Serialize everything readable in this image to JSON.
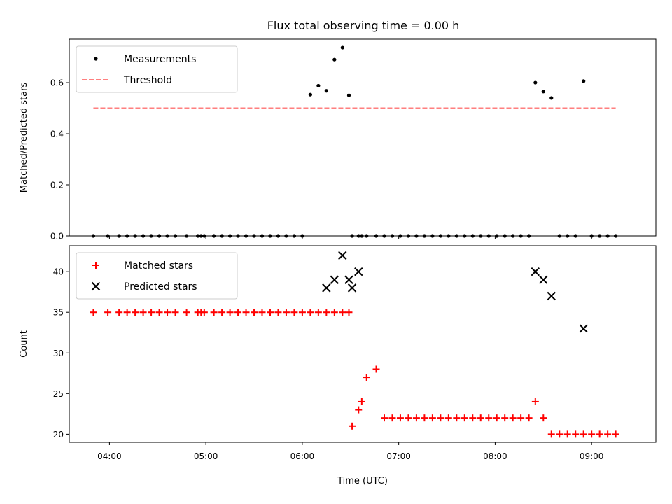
{
  "chart_data": [
    {
      "panel": "top",
      "type": "scatter",
      "title": "Flux total observing time = 0.00 h",
      "xlabel": "",
      "ylabel": "Matched/Predicted stars",
      "ylim": [
        0,
        0.77
      ],
      "yticks": [
        0.0,
        0.2,
        0.4,
        0.6
      ],
      "ytick_labels": [
        "0.0",
        "0.2",
        "0.4",
        "0.6"
      ],
      "legend_placement": "upper-left",
      "grid": false,
      "series": [
        {
          "name": "Measurements",
          "kind": "scatter",
          "color": "#000000",
          "marker": "dot",
          "x": [
            "03:50",
            "03:59",
            "04:06",
            "04:11",
            "04:16",
            "04:21",
            "04:26",
            "04:31",
            "04:36",
            "04:41",
            "04:48",
            "04:55",
            "04:57",
            "04:59",
            "05:05",
            "05:10",
            "05:15",
            "05:20",
            "05:25",
            "05:30",
            "05:35",
            "05:40",
            "05:45",
            "05:50",
            "05:55",
            "06:00",
            "06:05",
            "06:10",
            "06:15",
            "06:20",
            "06:25",
            "06:29",
            "06:31",
            "06:35",
            "06:37",
            "06:40",
            "06:46",
            "06:51",
            "06:56",
            "07:01",
            "07:06",
            "07:11",
            "07:16",
            "07:21",
            "07:26",
            "07:31",
            "07:36",
            "07:41",
            "07:46",
            "07:51",
            "07:56",
            "08:01",
            "08:06",
            "08:11",
            "08:16",
            "08:21",
            "08:25",
            "08:30",
            "08:35",
            "08:40",
            "08:45",
            "08:50",
            "08:55",
            "09:00",
            "09:05",
            "09:10",
            "09:15"
          ],
          "y": [
            0,
            0,
            0,
            0,
            0,
            0,
            0,
            0,
            0,
            0,
            0,
            0,
            0,
            0,
            0,
            0,
            0,
            0,
            0,
            0,
            0,
            0,
            0,
            0,
            0,
            0,
            0.553,
            0.588,
            0.568,
            0.69,
            0.737,
            0.55,
            0,
            0,
            0,
            0,
            0,
            0,
            0,
            0,
            0,
            0,
            0,
            0,
            0,
            0,
            0,
            0,
            0,
            0,
            0,
            0,
            0,
            0,
            0,
            0,
            0.6,
            0.565,
            0.54,
            0,
            0,
            0,
            0.606,
            0,
            0,
            0,
            0
          ]
        },
        {
          "name": "Threshold",
          "kind": "line",
          "color": "#ff7f7f",
          "dash": "dashed",
          "x": [
            "03:50",
            "09:15"
          ],
          "y": [
            0.5,
            0.5
          ]
        }
      ]
    },
    {
      "panel": "bottom",
      "type": "scatter",
      "title": "",
      "xlabel": "Time (UTC)",
      "ylabel": "Count",
      "ylim": [
        19,
        43.2
      ],
      "yticks": [
        20,
        25,
        30,
        35,
        40
      ],
      "ytick_labels": [
        "20",
        "25",
        "30",
        "35",
        "40"
      ],
      "xlim": [
        "03:35",
        "09:40"
      ],
      "xticks": [
        "04:00",
        "05:00",
        "06:00",
        "07:00",
        "08:00",
        "09:00"
      ],
      "xtick_labels": [
        "04:00",
        "05:00",
        "06:00",
        "07:00",
        "08:00",
        "09:00"
      ],
      "legend_placement": "upper-left",
      "grid": false,
      "series": [
        {
          "name": "Matched stars",
          "kind": "scatter",
          "color": "#ff0000",
          "marker": "plus",
          "x": [
            "03:50",
            "03:59",
            "04:06",
            "04:11",
            "04:16",
            "04:21",
            "04:26",
            "04:31",
            "04:36",
            "04:41",
            "04:48",
            "04:55",
            "04:57",
            "04:59",
            "05:05",
            "05:10",
            "05:15",
            "05:20",
            "05:25",
            "05:30",
            "05:35",
            "05:40",
            "05:45",
            "05:50",
            "05:55",
            "06:00",
            "06:05",
            "06:10",
            "06:15",
            "06:20",
            "06:25",
            "06:29",
            "06:31",
            "06:35",
            "06:37",
            "06:40",
            "06:46",
            "06:51",
            "06:56",
            "07:01",
            "07:06",
            "07:11",
            "07:16",
            "07:21",
            "07:26",
            "07:31",
            "07:36",
            "07:41",
            "07:46",
            "07:51",
            "07:56",
            "08:01",
            "08:06",
            "08:11",
            "08:16",
            "08:21",
            "08:25",
            "08:30",
            "08:35",
            "08:40",
            "08:45",
            "08:50",
            "08:55",
            "09:00",
            "09:05",
            "09:10",
            "09:15"
          ],
          "y": [
            35,
            35,
            35,
            35,
            35,
            35,
            35,
            35,
            35,
            35,
            35,
            35,
            35,
            35,
            35,
            35,
            35,
            35,
            35,
            35,
            35,
            35,
            35,
            35,
            35,
            35,
            35,
            35,
            35,
            35,
            35,
            35,
            21,
            23,
            24,
            27,
            28,
            22,
            22,
            22,
            22,
            22,
            22,
            22,
            22,
            22,
            22,
            22,
            22,
            22,
            22,
            22,
            22,
            22,
            22,
            22,
            24,
            22,
            20,
            20,
            20,
            20,
            20,
            20,
            20,
            20,
            20
          ]
        },
        {
          "name": "Predicted stars",
          "kind": "scatter",
          "color": "#000000",
          "marker": "x",
          "x": [
            "06:15",
            "06:20",
            "06:25",
            "06:29",
            "06:31",
            "06:35",
            "08:25",
            "08:30",
            "08:35",
            "08:55"
          ],
          "y": [
            38,
            39,
            42,
            39,
            38,
            40,
            40,
            39,
            37,
            33
          ]
        }
      ]
    }
  ]
}
